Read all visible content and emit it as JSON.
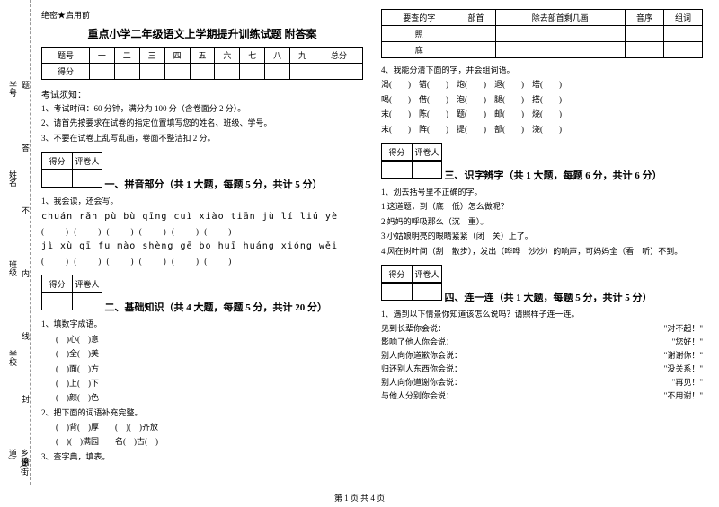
{
  "gutter": {
    "labels": [
      "乡镇(街道)",
      "学校",
      "班级",
      "姓名",
      "学号"
    ],
    "sublabels": [
      "密",
      "封",
      "线",
      "内",
      "不",
      "答",
      "题"
    ]
  },
  "secret": "绝密★启用前",
  "title": "重点小学二年级语文上学期提升训练试题 附答案",
  "score_header": [
    "题号",
    "一",
    "二",
    "三",
    "四",
    "五",
    "六",
    "七",
    "八",
    "九",
    "总分"
  ],
  "score_row": "得分",
  "exam_notice_title": "考试须知：",
  "exam_notices": [
    "1、考试时间：60 分钟，满分为 100 分（含卷面分 2 分）。",
    "2、请首先按要求在试卷的指定位置填写您的姓名、班级、学号。",
    "3、不要在试卷上乱写乱画，卷面不整洁扣 2 分。"
  ],
  "eval_box": {
    "c1": "得分",
    "c2": "评卷人"
  },
  "sec1_title": "一、拼音部分（共 1 大题，每题 5 分，共计 5 分）",
  "sec1_q": "1、我会读，还会写。",
  "pinyin1": "chuán rǎn   pù bù   qīng cuì   xiào tiān   jù lí   liú yè",
  "pinyin2": "jì xù   qī fu  mào shèng   gē bo   huī huáng  xióng wěi",
  "sec2_title": "二、基础知识（共 4 大题，每题 5 分，共计 20 分）",
  "sec2_q1": "1、填数字成语。",
  "idioms": [
    "(　)心(　)意",
    "(　)全(　)美",
    "(　)面(　)方",
    "(　)上(　)下",
    "(　)颜(　)色"
  ],
  "sec2_q2": "2、把下面的词语补充完整。",
  "fill_lines": [
    "(　)背(　)厚　　(　)(　)齐放",
    "(　)(　)满园　　名(　)古(　)"
  ],
  "sec2_q3": "3、查字典，填表。",
  "lookup_header": [
    "要查的字",
    "部首",
    "除去部首剩几画",
    "音序",
    "组词"
  ],
  "lookup_rows": [
    "照",
    "底"
  ],
  "sec2_q4": "4、我能分清下面的字，并会组词语。",
  "char_pairs": [
    [
      "渴(　　)",
      "错(　　)",
      "炮(　　)",
      "退(　　)",
      "塔(　　)"
    ],
    [
      "喝(　　)",
      "借(　　)",
      "泡(　　)",
      "腿(　　)",
      "搭(　　)"
    ],
    [
      "末(　　)",
      "陈(　　)",
      "题(　　)",
      "邮(　　)",
      "烧(　　)"
    ],
    [
      "末(　　)",
      "阵(　　)",
      "提(　　)",
      "部(　　)",
      "浇(　　)"
    ]
  ],
  "sec3_title": "三、识字辨字（共 1 大题，每题 6 分，共计 6 分）",
  "sec3_q": "1、划去括号里不正确的字。",
  "sec3_lines": [
    "1.这道题，到（底　低）怎么做呢？",
    "2.妈妈的呼吸那么（沉　重）。",
    "3.小姑娘明亮的眼睛紧紧（闭　关）上了。",
    "4.风在树叶间（刮　散步），发出（哗哗　沙沙）的响声，可妈妈全（看　听）不到。"
  ],
  "sec4_title": "四、连一连（共 1 大题，每题 5 分，共计 5 分）",
  "sec4_q": "1、遇到以下情景你知道该怎么说吗？请照样子连一连。",
  "pairs": [
    [
      "见到长辈你会说：",
      "\"对不起！\""
    ],
    [
      "影响了他人你会说：",
      "\"您好！\""
    ],
    [
      "别人向你道歉你会说：",
      "\"谢谢你！\""
    ],
    [
      "归还别人东西你会说：",
      "\"没关系！\""
    ],
    [
      "别人向你道谢你会说：",
      "\"再见！\""
    ],
    [
      "与他人分别你会说：",
      "\"不用谢！\""
    ]
  ],
  "footer": "第 1 页 共 4 页"
}
